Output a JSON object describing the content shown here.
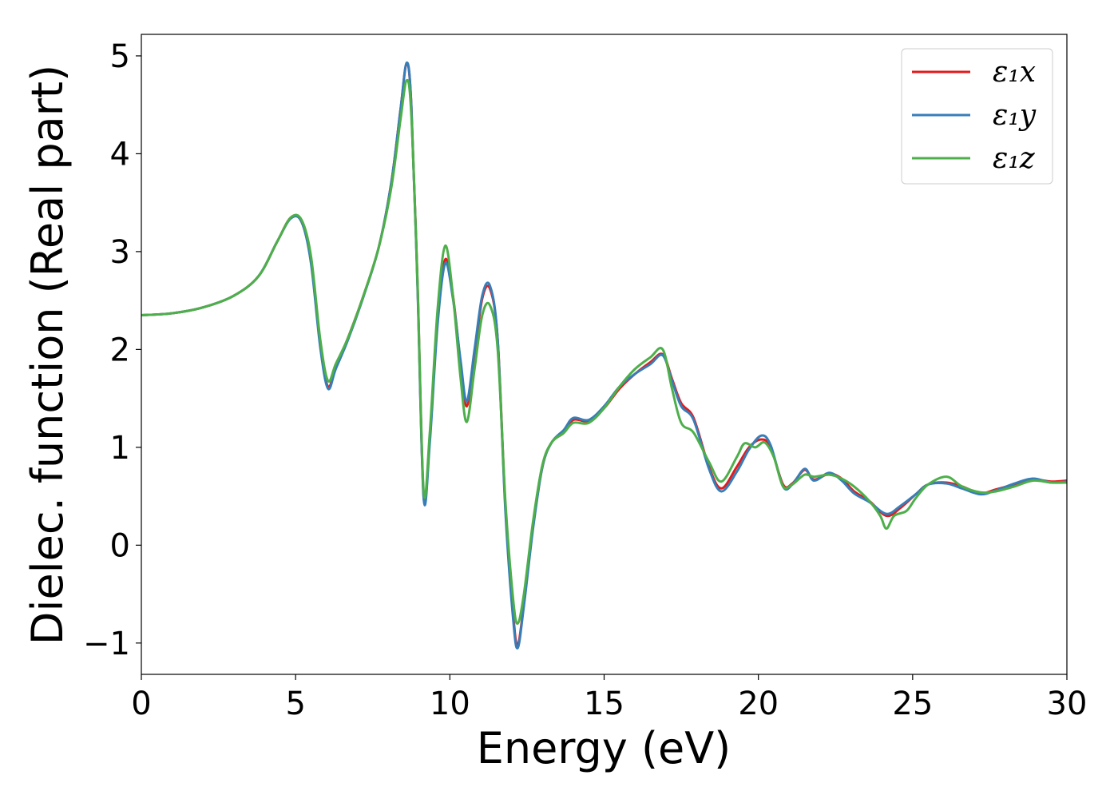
{
  "chart_data": {
    "type": "line",
    "title": "",
    "xlabel": "Energy (eV)",
    "ylabel": "Dielec. function (Real part)",
    "xlim": [
      0,
      30
    ],
    "ylim": [
      -1.32,
      5.22
    ],
    "xticks": [
      0,
      5,
      10,
      15,
      20,
      25,
      30
    ],
    "xtick_labels": [
      "0",
      "5",
      "10",
      "15",
      "20",
      "25",
      "30"
    ],
    "yticks": [
      -1,
      0,
      1,
      2,
      3,
      4,
      5
    ],
    "ytick_labels": [
      "−1",
      "0",
      "1",
      "2",
      "3",
      "4",
      "5"
    ],
    "grid": false,
    "legend_position": "top-right",
    "series": [
      {
        "name": "ε₁x",
        "color": "#e41a1c",
        "points": [
          [
            0,
            2.35
          ],
          [
            1,
            2.37
          ],
          [
            2,
            2.43
          ],
          [
            3,
            2.55
          ],
          [
            3.8,
            2.75
          ],
          [
            4.4,
            3.1
          ],
          [
            4.85,
            3.35
          ],
          [
            5.2,
            3.3
          ],
          [
            5.5,
            2.9
          ],
          [
            5.8,
            2.05
          ],
          [
            6.05,
            1.62
          ],
          [
            6.3,
            1.82
          ],
          [
            6.7,
            2.12
          ],
          [
            7.2,
            2.55
          ],
          [
            7.7,
            3.05
          ],
          [
            8.1,
            3.7
          ],
          [
            8.4,
            4.45
          ],
          [
            8.6,
            4.92
          ],
          [
            8.75,
            4.5
          ],
          [
            8.95,
            2.7
          ],
          [
            9.15,
            0.5
          ],
          [
            9.35,
            1.1
          ],
          [
            9.6,
            2.3
          ],
          [
            9.85,
            2.92
          ],
          [
            10.1,
            2.55
          ],
          [
            10.35,
            1.85
          ],
          [
            10.55,
            1.42
          ],
          [
            10.8,
            1.95
          ],
          [
            11.05,
            2.52
          ],
          [
            11.3,
            2.62
          ],
          [
            11.55,
            2.1
          ],
          [
            11.8,
            0.4
          ],
          [
            12.05,
            -0.7
          ],
          [
            12.2,
            -1.02
          ],
          [
            12.4,
            -0.6
          ],
          [
            12.7,
            0.2
          ],
          [
            13.0,
            0.8
          ],
          [
            13.3,
            1.05
          ],
          [
            13.7,
            1.15
          ],
          [
            14.0,
            1.28
          ],
          [
            14.5,
            1.27
          ],
          [
            15.0,
            1.4
          ],
          [
            15.5,
            1.6
          ],
          [
            16.0,
            1.75
          ],
          [
            16.5,
            1.87
          ],
          [
            16.9,
            1.95
          ],
          [
            17.2,
            1.7
          ],
          [
            17.5,
            1.45
          ],
          [
            17.9,
            1.3
          ],
          [
            18.4,
            0.8
          ],
          [
            18.8,
            0.58
          ],
          [
            19.3,
            0.8
          ],
          [
            19.7,
            1.0
          ],
          [
            20.1,
            1.08
          ],
          [
            20.4,
            1.0
          ],
          [
            20.8,
            0.62
          ],
          [
            21.1,
            0.63
          ],
          [
            21.5,
            0.77
          ],
          [
            21.8,
            0.67
          ],
          [
            22.3,
            0.73
          ],
          [
            22.7,
            0.68
          ],
          [
            23.1,
            0.55
          ],
          [
            23.6,
            0.45
          ],
          [
            24.15,
            0.3
          ],
          [
            24.6,
            0.38
          ],
          [
            25.1,
            0.52
          ],
          [
            25.5,
            0.62
          ],
          [
            26.1,
            0.64
          ],
          [
            26.6,
            0.6
          ],
          [
            27.2,
            0.53
          ],
          [
            27.7,
            0.57
          ],
          [
            28.3,
            0.62
          ],
          [
            28.9,
            0.67
          ],
          [
            29.5,
            0.65
          ],
          [
            30,
            0.66
          ]
        ]
      },
      {
        "name": "ε₁y",
        "color": "#377eb8",
        "points": [
          [
            0,
            2.35
          ],
          [
            1,
            2.37
          ],
          [
            2,
            2.43
          ],
          [
            3,
            2.55
          ],
          [
            3.8,
            2.75
          ],
          [
            4.4,
            3.1
          ],
          [
            4.85,
            3.34
          ],
          [
            5.2,
            3.3
          ],
          [
            5.5,
            2.88
          ],
          [
            5.8,
            2.02
          ],
          [
            6.05,
            1.6
          ],
          [
            6.3,
            1.8
          ],
          [
            6.7,
            2.1
          ],
          [
            7.2,
            2.54
          ],
          [
            7.7,
            3.05
          ],
          [
            8.1,
            3.7
          ],
          [
            8.4,
            4.45
          ],
          [
            8.6,
            4.93
          ],
          [
            8.75,
            4.5
          ],
          [
            8.95,
            2.65
          ],
          [
            9.15,
            0.48
          ],
          [
            9.35,
            1.05
          ],
          [
            9.6,
            2.25
          ],
          [
            9.85,
            2.88
          ],
          [
            10.1,
            2.52
          ],
          [
            10.35,
            1.88
          ],
          [
            10.55,
            1.47
          ],
          [
            10.8,
            2.0
          ],
          [
            11.05,
            2.55
          ],
          [
            11.3,
            2.65
          ],
          [
            11.55,
            2.1
          ],
          [
            11.8,
            0.35
          ],
          [
            12.05,
            -0.75
          ],
          [
            12.2,
            -1.05
          ],
          [
            12.4,
            -0.62
          ],
          [
            12.7,
            0.18
          ],
          [
            13.0,
            0.8
          ],
          [
            13.3,
            1.05
          ],
          [
            13.7,
            1.18
          ],
          [
            14.0,
            1.3
          ],
          [
            14.5,
            1.28
          ],
          [
            15.0,
            1.42
          ],
          [
            15.5,
            1.62
          ],
          [
            16.0,
            1.75
          ],
          [
            16.5,
            1.85
          ],
          [
            16.9,
            1.94
          ],
          [
            17.2,
            1.68
          ],
          [
            17.5,
            1.42
          ],
          [
            17.9,
            1.28
          ],
          [
            18.4,
            0.78
          ],
          [
            18.8,
            0.55
          ],
          [
            19.3,
            0.75
          ],
          [
            19.7,
            0.98
          ],
          [
            20.1,
            1.12
          ],
          [
            20.4,
            1.02
          ],
          [
            20.8,
            0.6
          ],
          [
            21.1,
            0.62
          ],
          [
            21.5,
            0.78
          ],
          [
            21.8,
            0.66
          ],
          [
            22.3,
            0.74
          ],
          [
            22.7,
            0.66
          ],
          [
            23.1,
            0.53
          ],
          [
            23.6,
            0.44
          ],
          [
            24.15,
            0.32
          ],
          [
            24.6,
            0.4
          ],
          [
            25.1,
            0.52
          ],
          [
            25.5,
            0.62
          ],
          [
            26.1,
            0.63
          ],
          [
            26.6,
            0.58
          ],
          [
            27.2,
            0.52
          ],
          [
            27.7,
            0.56
          ],
          [
            28.3,
            0.63
          ],
          [
            28.9,
            0.68
          ],
          [
            29.5,
            0.64
          ],
          [
            30,
            0.65
          ]
        ]
      },
      {
        "name": "ε₁z",
        "color": "#4daf4a",
        "points": [
          [
            0,
            2.35
          ],
          [
            1,
            2.37
          ],
          [
            2,
            2.43
          ],
          [
            3,
            2.55
          ],
          [
            3.8,
            2.75
          ],
          [
            4.4,
            3.1
          ],
          [
            4.85,
            3.35
          ],
          [
            5.2,
            3.32
          ],
          [
            5.5,
            2.95
          ],
          [
            5.8,
            2.1
          ],
          [
            6.05,
            1.68
          ],
          [
            6.3,
            1.85
          ],
          [
            6.7,
            2.12
          ],
          [
            7.2,
            2.55
          ],
          [
            7.7,
            3.05
          ],
          [
            8.1,
            3.65
          ],
          [
            8.4,
            4.35
          ],
          [
            8.6,
            4.75
          ],
          [
            8.75,
            4.4
          ],
          [
            8.95,
            2.7
          ],
          [
            9.15,
            0.55
          ],
          [
            9.35,
            1.15
          ],
          [
            9.6,
            2.4
          ],
          [
            9.85,
            3.06
          ],
          [
            10.1,
            2.55
          ],
          [
            10.35,
            1.7
          ],
          [
            10.55,
            1.26
          ],
          [
            10.8,
            1.8
          ],
          [
            11.05,
            2.35
          ],
          [
            11.3,
            2.45
          ],
          [
            11.55,
            2.0
          ],
          [
            11.8,
            0.45
          ],
          [
            12.05,
            -0.55
          ],
          [
            12.2,
            -0.8
          ],
          [
            12.4,
            -0.5
          ],
          [
            12.7,
            0.25
          ],
          [
            13.0,
            0.82
          ],
          [
            13.3,
            1.05
          ],
          [
            13.7,
            1.15
          ],
          [
            14.0,
            1.25
          ],
          [
            14.5,
            1.25
          ],
          [
            15.0,
            1.4
          ],
          [
            15.5,
            1.62
          ],
          [
            16.0,
            1.8
          ],
          [
            16.5,
            1.92
          ],
          [
            16.9,
            2.0
          ],
          [
            17.2,
            1.6
          ],
          [
            17.5,
            1.25
          ],
          [
            17.9,
            1.15
          ],
          [
            18.4,
            0.85
          ],
          [
            18.8,
            0.65
          ],
          [
            19.3,
            0.9
          ],
          [
            19.55,
            1.04
          ],
          [
            19.9,
            1.0
          ],
          [
            20.2,
            1.05
          ],
          [
            20.5,
            0.9
          ],
          [
            20.8,
            0.6
          ],
          [
            21.1,
            0.62
          ],
          [
            21.5,
            0.72
          ],
          [
            21.8,
            0.7
          ],
          [
            22.3,
            0.72
          ],
          [
            22.7,
            0.68
          ],
          [
            23.1,
            0.6
          ],
          [
            23.6,
            0.45
          ],
          [
            23.95,
            0.3
          ],
          [
            24.15,
            0.17
          ],
          [
            24.4,
            0.3
          ],
          [
            24.8,
            0.35
          ],
          [
            25.1,
            0.48
          ],
          [
            25.5,
            0.62
          ],
          [
            26.1,
            0.7
          ],
          [
            26.6,
            0.6
          ],
          [
            27.2,
            0.54
          ],
          [
            27.7,
            0.55
          ],
          [
            28.3,
            0.6
          ],
          [
            28.9,
            0.66
          ],
          [
            29.5,
            0.64
          ],
          [
            30,
            0.64
          ]
        ]
      }
    ]
  }
}
